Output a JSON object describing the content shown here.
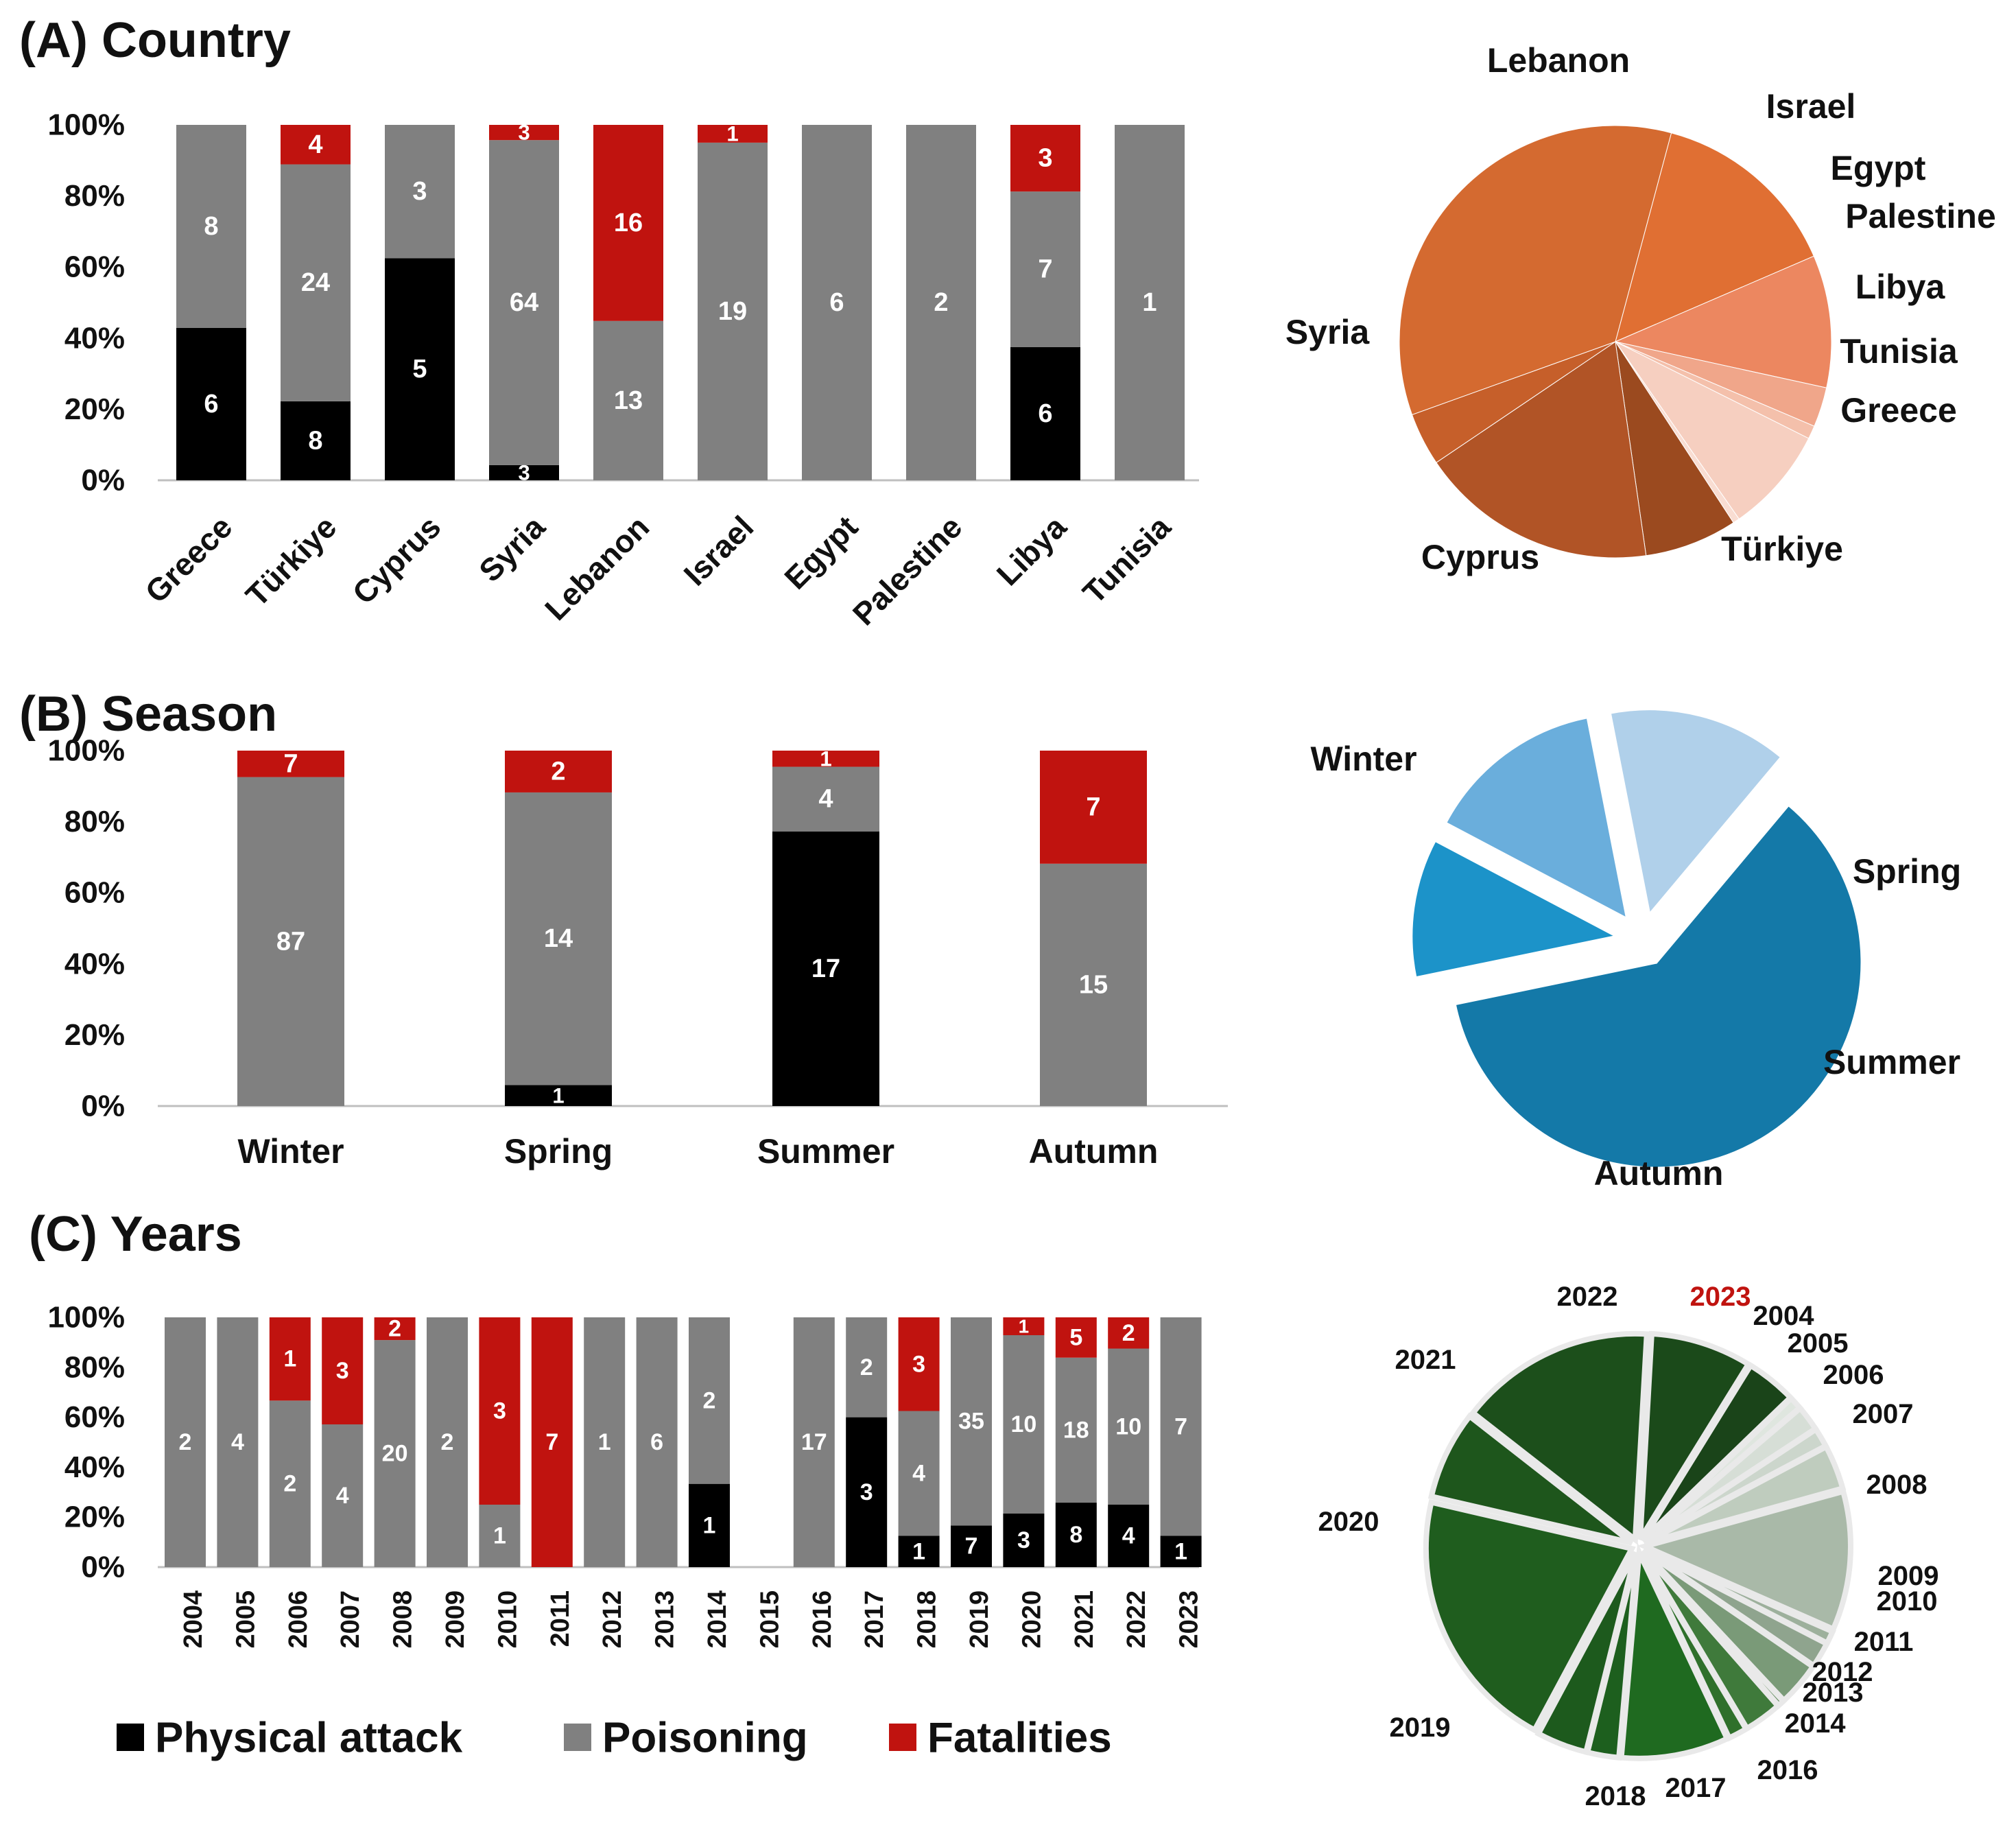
{
  "colors": {
    "physical": "#000000",
    "poisoning": "#808080",
    "fatal": "#c0130f",
    "axis": "#bfbfbf",
    "text": "#111111",
    "highlight_year": "#c0130f"
  },
  "panels": {
    "a_title": "(A) Country",
    "b_title": "(B) Season",
    "c_title": "(C) Years"
  },
  "legend": [
    {
      "key": "physical",
      "label": "Physical attack"
    },
    {
      "key": "poisoning",
      "label": "Poisoning"
    },
    {
      "key": "fatal",
      "label": "Fatalities"
    }
  ],
  "chart_data": [
    {
      "id": "country_bar",
      "type": "bar",
      "stacked": true,
      "normalized": true,
      "title": "(A) Country",
      "y_ticks": [
        "0%",
        "20%",
        "40%",
        "60%",
        "80%",
        "100%"
      ],
      "ylim": [
        0,
        100
      ],
      "categories": [
        "Greece",
        "Türkiye",
        "Cyprus",
        "Syria",
        "Lebanon",
        "Israel",
        "Egypt",
        "Palestine",
        "Libya",
        "Tunisia"
      ],
      "series": [
        {
          "name": "Physical attack",
          "key": "physical",
          "values": [
            6,
            8,
            5,
            3,
            0,
            0,
            0,
            0,
            6,
            0
          ]
        },
        {
          "name": "Poisoning",
          "key": "poisoning",
          "values": [
            8,
            24,
            3,
            64,
            13,
            19,
            6,
            2,
            7,
            1
          ]
        },
        {
          "name": "Fatalities",
          "key": "fatal",
          "values": [
            0,
            4,
            0,
            3,
            16,
            1,
            0,
            0,
            3,
            0
          ]
        }
      ]
    },
    {
      "id": "country_pie",
      "type": "pie",
      "slices": [
        {
          "label": "Lebanon",
          "value": 29,
          "color": "#e06f33"
        },
        {
          "label": "Israel",
          "value": 20,
          "color": "#ec8760"
        },
        {
          "label": "Egypt",
          "value": 6,
          "color": "#f0a68a"
        },
        {
          "label": "Palestine",
          "value": 2,
          "color": "#f4c0ab"
        },
        {
          "label": "Libya",
          "value": 16,
          "color": "#f6cfc0"
        },
        {
          "label": "Tunisia",
          "value": 1,
          "color": "#f9ddd2"
        },
        {
          "label": "Greece",
          "value": 14,
          "color": "#9b4a1f"
        },
        {
          "label": "Türkiye",
          "value": 36,
          "color": "#b15426"
        },
        {
          "label": "Cyprus",
          "value": 8,
          "color": "#c65f2a"
        },
        {
          "label": "Syria",
          "value": 70,
          "color": "#d46a30"
        }
      ]
    },
    {
      "id": "season_bar",
      "type": "bar",
      "stacked": true,
      "normalized": true,
      "title": "(B) Season",
      "y_ticks": [
        "0%",
        "20%",
        "40%",
        "60%",
        "80%",
        "100%"
      ],
      "ylim": [
        0,
        100
      ],
      "categories": [
        "Winter",
        "Spring",
        "Summer",
        "Autumn"
      ],
      "series": [
        {
          "name": "Physical attack",
          "key": "physical",
          "values": [
            0,
            1,
            17,
            0
          ]
        },
        {
          "name": "Poisoning",
          "key": "poisoning",
          "values": [
            87,
            14,
            4,
            15
          ]
        },
        {
          "name": "Fatalities",
          "key": "fatal",
          "values": [
            7,
            2,
            1,
            7
          ]
        }
      ]
    },
    {
      "id": "season_pie",
      "type": "pie",
      "slices": [
        {
          "label": "Winter",
          "value": 94,
          "color": "#1479a8"
        },
        {
          "label": "Spring",
          "value": 17,
          "color": "#1c93c9"
        },
        {
          "label": "Summer",
          "value": 22,
          "color": "#6aaedc"
        },
        {
          "label": "Autumn",
          "value": 22,
          "color": "#b0d0ea"
        }
      ]
    },
    {
      "id": "years_bar",
      "type": "bar",
      "stacked": true,
      "normalized": true,
      "title": "(C) Years",
      "y_ticks": [
        "0%",
        "20%",
        "40%",
        "60%",
        "80%",
        "100%"
      ],
      "ylim": [
        0,
        100
      ],
      "categories": [
        "2004",
        "2005",
        "2006",
        "2007",
        "2008",
        "2009",
        "2010",
        "2011",
        "2012",
        "2013",
        "2014",
        "2015",
        "2016",
        "2017",
        "2018",
        "2019",
        "2020",
        "2021",
        "2022",
        "2023"
      ],
      "series": [
        {
          "name": "Physical attack",
          "key": "physical",
          "values": [
            0,
            0,
            0,
            0,
            0,
            0,
            0,
            0,
            0,
            0,
            1,
            0,
            0,
            3,
            1,
            7,
            3,
            8,
            4,
            1
          ]
        },
        {
          "name": "Poisoning",
          "key": "poisoning",
          "values": [
            2,
            4,
            2,
            4,
            20,
            2,
            1,
            0,
            1,
            6,
            2,
            0,
            17,
            2,
            4,
            35,
            10,
            18,
            10,
            7
          ]
        },
        {
          "name": "Fatalities",
          "key": "fatal",
          "values": [
            0,
            0,
            1,
            3,
            2,
            0,
            3,
            7,
            0,
            0,
            0,
            0,
            0,
            0,
            3,
            0,
            1,
            5,
            2,
            0
          ]
        }
      ]
    },
    {
      "id": "years_pie",
      "type": "pie",
      "slices": [
        {
          "label": "2004",
          "value": 2,
          "color": "#dfe6df"
        },
        {
          "label": "2005",
          "value": 4,
          "color": "#d6ded6"
        },
        {
          "label": "2006",
          "value": 3,
          "color": "#ccd6cc"
        },
        {
          "label": "2007",
          "value": 7,
          "color": "#bfccbe"
        },
        {
          "label": "2008",
          "value": 22,
          "color": "#a9b9a8"
        },
        {
          "label": "2009",
          "value": 2,
          "color": "#9db09c"
        },
        {
          "label": "2010",
          "value": 4,
          "color": "#8fa48e"
        },
        {
          "label": "2011",
          "value": 7,
          "color": "#7a9a78"
        },
        {
          "label": "2012",
          "value": 1,
          "color": "#5f8a5c"
        },
        {
          "label": "2013",
          "value": 6,
          "color": "#3f7a3b"
        },
        {
          "label": "2014",
          "value": 3,
          "color": "#2f702b"
        },
        {
          "label": "2016",
          "value": 17,
          "color": "#1f6a20"
        },
        {
          "label": "2017",
          "value": 5,
          "color": "#1d5f1e"
        },
        {
          "label": "2018",
          "value": 8,
          "color": "#1d5a1d"
        },
        {
          "label": "2019",
          "value": 42,
          "color": "#1f5d1e"
        },
        {
          "label": "2020",
          "value": 14,
          "color": "#1e561c"
        },
        {
          "label": "2021",
          "value": 31,
          "color": "#1c4f1b"
        },
        {
          "label": "2022",
          "value": 16,
          "color": "#1b4a1a"
        },
        {
          "label": "2023",
          "value": 8,
          "color": "#1a4419",
          "label_color": "#c0130f"
        }
      ]
    }
  ]
}
